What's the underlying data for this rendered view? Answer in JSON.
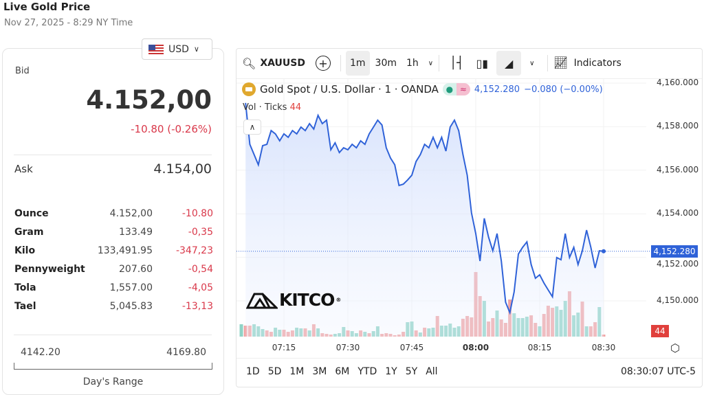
{
  "page": {
    "title": "Live Gold Price",
    "date": "Nov 27, 2025 - 8:29 NY Time"
  },
  "currency": {
    "selected": "USD",
    "icon": "us-flag-icon"
  },
  "quote": {
    "bid_label": "Bid",
    "bid": "4.152,00",
    "change": "-10.80 (-0.26%)",
    "ask_label": "Ask",
    "ask": "4.154,00"
  },
  "units": [
    {
      "name": "Ounce",
      "value": "4.152,00",
      "change": "-10.80"
    },
    {
      "name": "Gram",
      "value": "133.49",
      "change": "-0,35"
    },
    {
      "name": "Kilo",
      "value": "133,491.95",
      "change": "-347,23"
    },
    {
      "name": "Pennyweight",
      "value": "207.60",
      "change": "-0,54"
    },
    {
      "name": "Tola",
      "value": "1,557.00",
      "change": "-4,05"
    },
    {
      "name": "Tael",
      "value": "5,045.83",
      "change": "-13,13"
    }
  ],
  "days_range": {
    "low": "4142.20",
    "high": "4169.80",
    "label": "Day's Range"
  },
  "toolbar": {
    "symbol": "XAUUSD",
    "intervals": [
      "1m",
      "30m",
      "1h"
    ],
    "selected_interval": "1m",
    "indicators": "Indicators"
  },
  "legend": {
    "title": "Gold Spot / U.S. Dollar · 1 · OANDA",
    "last": "4,152.280",
    "change": "−0.080 (−0.00%)",
    "vol_label": "Vol · Ticks",
    "vol_value": "44"
  },
  "logo": "KITCO",
  "range_buttons": [
    "1D",
    "5D",
    "1M",
    "3M",
    "6M",
    "YTD",
    "1Y",
    "5Y",
    "All"
  ],
  "clock": "08:30:07 UTC-5",
  "colors": {
    "line": "#2f62d8",
    "up": "#8fd3c6",
    "down": "#f0a3a3",
    "negative": "#d9384a"
  },
  "chart_data": {
    "type": "line",
    "y_ticks": [
      "4,160.000",
      "4,158.000",
      "4,156.000",
      "4,154.000",
      "4,152.000",
      "4,150.000"
    ],
    "ylim": [
      4148.7,
      4160
    ],
    "x_ticks": [
      "07:15",
      "07:30",
      "07:45",
      "08:00",
      "08:15",
      "08:30"
    ],
    "x_tick_bold": "08:00",
    "last_price_label": "4,152.280",
    "last_volume_label": "44",
    "times": [
      "07:05",
      "07:06",
      "07:07",
      "07:08",
      "07:09",
      "07:10",
      "07:11",
      "07:12",
      "07:13",
      "07:14",
      "07:15",
      "07:16",
      "07:17",
      "07:18",
      "07:19",
      "07:20",
      "07:21",
      "07:22",
      "07:23",
      "07:24",
      "07:25",
      "07:26",
      "07:27",
      "07:28",
      "07:29",
      "07:30",
      "07:31",
      "07:32",
      "07:33",
      "07:34",
      "07:35",
      "07:36",
      "07:37",
      "07:38",
      "07:39",
      "07:40",
      "07:41",
      "07:42",
      "07:43",
      "07:44",
      "07:45",
      "07:46",
      "07:47",
      "07:48",
      "07:49",
      "07:50",
      "07:51",
      "07:52",
      "07:53",
      "07:54",
      "07:55",
      "07:56",
      "07:57",
      "07:58",
      "07:59",
      "08:00",
      "08:01",
      "08:02",
      "08:03",
      "08:04",
      "08:05",
      "08:06",
      "08:07",
      "08:08",
      "08:09",
      "08:10",
      "08:11",
      "08:12",
      "08:13",
      "08:14",
      "08:15",
      "08:16",
      "08:17",
      "08:18",
      "08:19",
      "08:20",
      "08:21",
      "08:22",
      "08:23",
      "08:24",
      "08:25",
      "08:26",
      "08:27",
      "08:28",
      "08:29",
      "08:30"
    ],
    "price": [
      null,
      4159.09,
      4157.19,
      4156.72,
      4156.25,
      4157.13,
      4157.19,
      4157.82,
      4157.67,
      4157.35,
      4157.67,
      4157.51,
      4157.82,
      4157.67,
      4157.98,
      4157.82,
      4158.14,
      4157.89,
      4158.52,
      4158.14,
      4158.3,
      4156.94,
      4157.26,
      4156.81,
      4157.03,
      4156.94,
      4157.19,
      4157.03,
      4157.35,
      4157.19,
      4157.67,
      4157.98,
      4158.3,
      4158.08,
      4157.03,
      4156.56,
      4156.25,
      4155.3,
      4155.36,
      4155.55,
      4155.77,
      4156.4,
      4156.72,
      4157.19,
      4157.03,
      4157.51,
      4157.03,
      4157.51,
      4156.88,
      4157.98,
      4158.3,
      4157.82,
      4156.72,
      4155.77,
      4154.04,
      4153.09,
      4151.83,
      4153.79,
      4152.93,
      4152.3,
      4153.09,
      4151.83,
      4149.94,
      4149.46,
      4150.41,
      4152.15,
      4152.46,
      4152.71,
      4151.67,
      4151.04,
      4151.2,
      4150.82,
      4150.5,
      4150.19,
      4151.99,
      4151.89,
      4153.09,
      4151.99,
      4152.46,
      4151.67,
      4152.3,
      4153.25,
      4152.46,
      4151.51,
      4152.3,
      4152.28
    ],
    "volume": [
      270,
      240,
      240,
      270,
      225,
      165,
      135,
      105,
      195,
      150,
      150,
      105,
      135,
      195,
      180,
      180,
      135,
      270,
      180,
      75,
      60,
      45,
      60,
      75,
      210,
      135,
      120,
      75,
      135,
      105,
      75,
      120,
      225,
      60,
      75,
      60,
      30,
      45,
      105,
      315,
      330,
      135,
      90,
      195,
      180,
      195,
      450,
      240,
      240,
      285,
      195,
      225,
      390,
      450,
      420,
      1410,
      885,
      780,
      330,
      405,
      570,
      375,
      300,
      810,
      510,
      405,
      405,
      435,
      465,
      300,
      225,
      495,
      675,
      630,
      660,
      585,
      780,
      990,
      465,
      525,
      765,
      225,
      225,
      315,
      645,
      44
    ],
    "volume_dir": [
      "u",
      "d",
      "d",
      "u",
      "u",
      "u",
      "d",
      "d",
      "u",
      "u",
      "d",
      "d",
      "d",
      "u",
      "u",
      "d",
      "u",
      "d",
      "u",
      "d",
      "d",
      "d",
      "u",
      "u",
      "u",
      "d",
      "u",
      "u",
      "d",
      "u",
      "d",
      "u",
      "u",
      "d",
      "d",
      "d",
      "d",
      "d",
      "d",
      "u",
      "u",
      "d",
      "u",
      "d",
      "u",
      "u",
      "d",
      "u",
      "u",
      "u",
      "u",
      "u",
      "d",
      "d",
      "d",
      "d",
      "d",
      "u",
      "d",
      "d",
      "u",
      "d",
      "d",
      "d",
      "u",
      "u",
      "u",
      "u",
      "d",
      "d",
      "u",
      "d",
      "d",
      "d",
      "u",
      "u",
      "u",
      "d",
      "u",
      "u",
      "d",
      "u",
      "d",
      "d",
      "u",
      "d"
    ]
  }
}
